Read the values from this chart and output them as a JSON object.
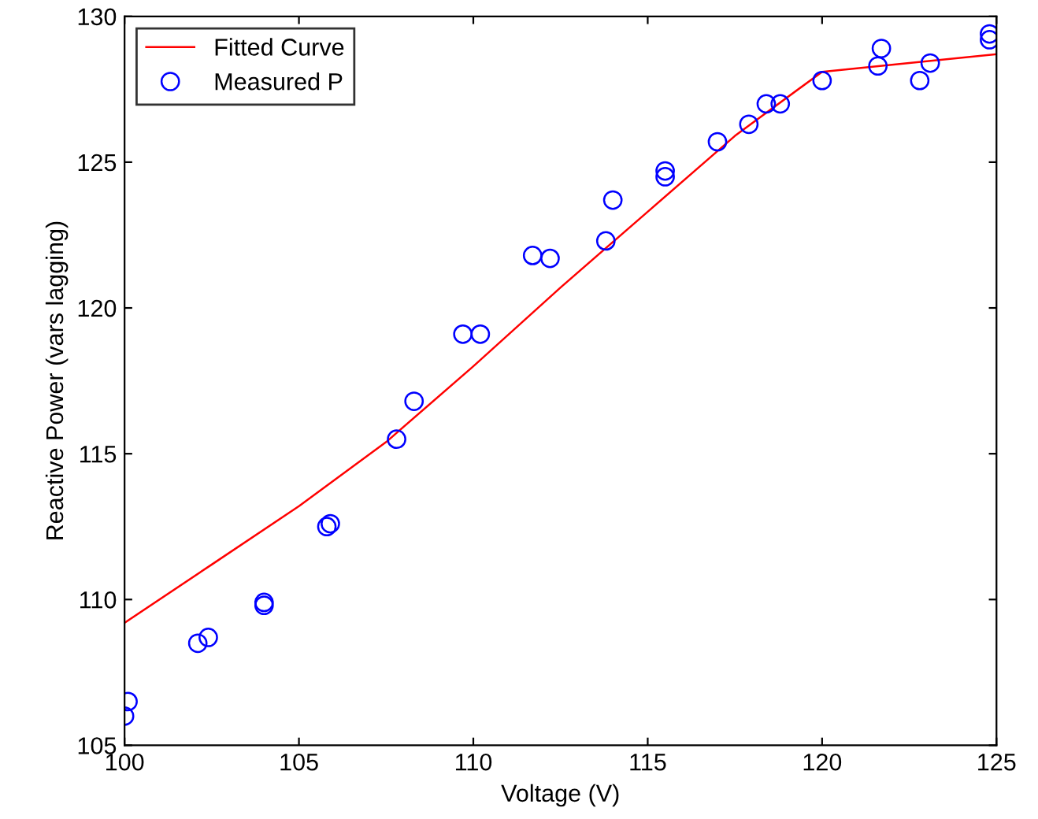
{
  "chart_data": {
    "type": "line",
    "xlabel": "Voltage (V)",
    "ylabel": "Reactive Power (vars lagging)",
    "xlim": [
      100,
      125
    ],
    "xticks": [
      100,
      105,
      110,
      115,
      120,
      125
    ],
    "ylim": [
      105,
      130
    ],
    "yticks": [
      105,
      110,
      115,
      120,
      125,
      130
    ],
    "grid": false,
    "legend": "top left",
    "series": [
      {
        "name": "Fitted Curve",
        "color": "#ff0000",
        "marker": "none",
        "line_style": "solid",
        "x": [
          100,
          102.5,
          105,
          107.5,
          110,
          112.5,
          115,
          117.5,
          120,
          122.5,
          125
        ],
        "values": [
          109.2,
          111.2,
          113.2,
          115.4,
          118.0,
          120.7,
          123.3,
          125.9,
          128.1,
          128.4,
          128.7
        ]
      },
      {
        "name": "Measured P",
        "type": "scatter",
        "color": "#0000ff",
        "marker": "circle",
        "x": [
          100,
          100.1,
          102.1,
          102.4,
          104.0,
          104.0,
          105.8,
          105.9,
          107.8,
          108.3,
          109.7,
          110.2,
          111.7,
          112.2,
          113.8,
          114.0,
          115.5,
          115.5,
          117.0,
          117.9,
          118.4,
          118.8,
          120.0,
          121.6,
          121.7,
          122.8,
          123.1,
          124.8,
          124.8
        ],
        "values": [
          106.0,
          106.5,
          108.5,
          108.7,
          109.9,
          109.8,
          112.5,
          112.6,
          115.5,
          116.8,
          119.1,
          119.1,
          121.8,
          121.7,
          122.3,
          123.7,
          124.7,
          124.5,
          125.7,
          126.3,
          127.0,
          127.0,
          127.8,
          128.3,
          128.9,
          127.8,
          128.4,
          129.2,
          129.4
        ]
      }
    ]
  }
}
